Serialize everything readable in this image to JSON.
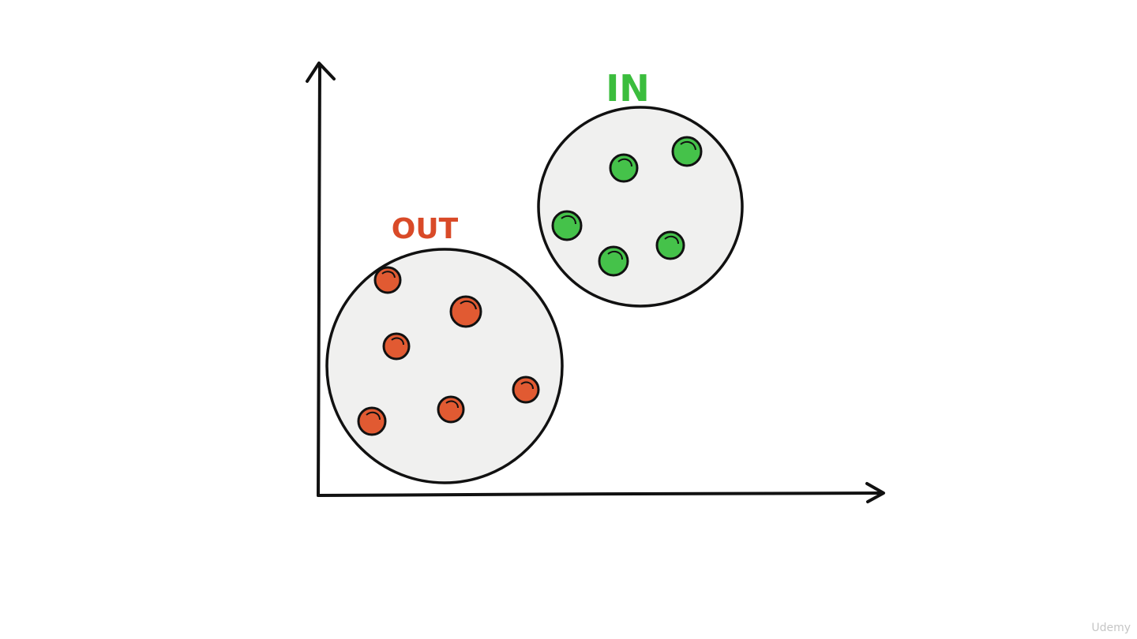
{
  "diagram": {
    "labels": {
      "out": "OUT",
      "in": "IN"
    },
    "colors": {
      "out_color": "#e15a32",
      "out_text_color": "#d94a28",
      "in_color": "#45c24a",
      "in_text_color": "#3bbd3d",
      "cluster_fill": "#f0f0ef",
      "stroke": "#111111"
    }
  },
  "watermark": "Udemy"
}
